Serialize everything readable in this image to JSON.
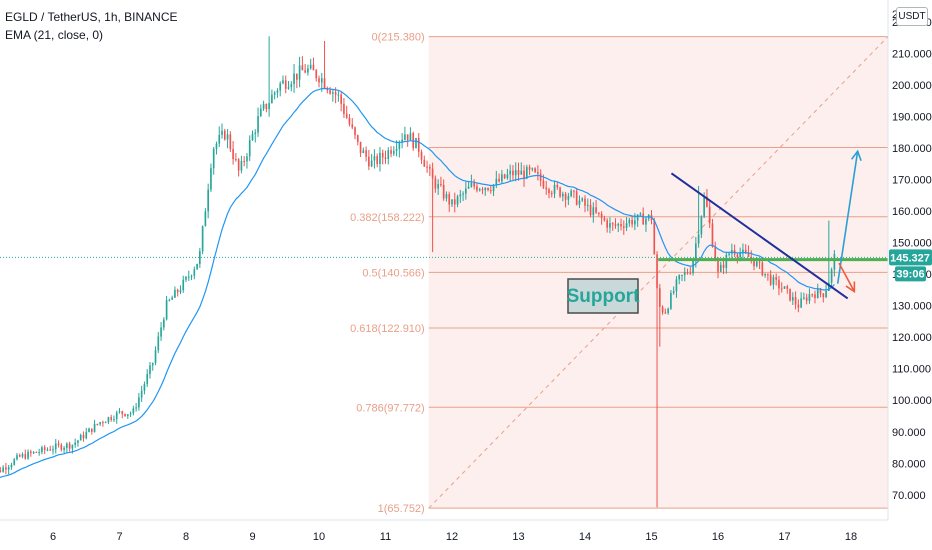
{
  "header": {
    "symbol_line": "EGLD / TetherUS, 1h, BINANCE",
    "indicator_line": "EMA (21, close, 0)"
  },
  "toolbar": {
    "currency": "USDT"
  },
  "price_labels": {
    "last_price": "145.327",
    "countdown": "39:06",
    "top_partial": "2"
  },
  "annotation": {
    "support_label": "Support"
  },
  "colors": {
    "up": "#26a69a",
    "down": "#ef5350",
    "ema": "#2196f3",
    "fib": "#e8a089",
    "fib_fill": "#fcecea",
    "trendline": "#1f2f9c",
    "support": "#4caf50",
    "arrow_up": "#2aa0d6",
    "arrow_down": "#f05a3c"
  },
  "chart_data": {
    "type": "candlestick",
    "symbol": "EGLD / TetherUS",
    "interval": "1h",
    "exchange": "BINANCE",
    "ylim": [
      62,
      227
    ],
    "y_ticks": [
      70,
      80,
      90,
      100,
      110,
      120,
      130,
      140,
      150,
      160,
      170,
      180,
      190,
      200,
      210,
      220
    ],
    "y_tick_labels": [
      "70.000",
      "80.000",
      "90.000",
      "100.000",
      "110.000",
      "120.000",
      "130.000",
      "140.000",
      "150.000",
      "160.000",
      "170.000",
      "180.000",
      "190.000",
      "200.000",
      "210.000",
      "220.000"
    ],
    "x_ticks": [
      6,
      7,
      8,
      9,
      10,
      11,
      12,
      13,
      14,
      15,
      16,
      17,
      18
    ],
    "x_tick_labels": [
      "6",
      "7",
      "8",
      "9",
      "10",
      "11",
      "12",
      "13",
      "14",
      "15",
      "16",
      "17",
      "18"
    ],
    "price_path": [
      [
        5.0,
        75
      ],
      [
        5.5,
        82
      ],
      [
        6.0,
        85
      ],
      [
        6.3,
        86
      ],
      [
        6.7,
        93
      ],
      [
        7.0,
        96
      ],
      [
        7.2,
        96
      ],
      [
        7.5,
        112
      ],
      [
        7.7,
        130
      ],
      [
        8.0,
        138
      ],
      [
        8.2,
        145
      ],
      [
        8.4,
        180
      ],
      [
        8.6,
        185
      ],
      [
        8.8,
        172
      ],
      [
        9.1,
        190
      ],
      [
        9.4,
        200
      ],
      [
        9.8,
        205
      ],
      [
        10.0,
        203
      ],
      [
        10.3,
        196
      ],
      [
        10.6,
        180
      ],
      [
        10.8,
        175
      ],
      [
        11.0,
        178
      ],
      [
        11.3,
        185
      ],
      [
        11.5,
        180
      ],
      [
        11.7,
        170
      ],
      [
        12.0,
        162
      ],
      [
        12.3,
        168
      ],
      [
        12.6,
        168
      ],
      [
        12.9,
        172
      ],
      [
        13.2,
        172
      ],
      [
        13.5,
        167
      ],
      [
        13.8,
        165
      ],
      [
        14.1,
        160
      ],
      [
        14.4,
        155
      ],
      [
        14.7,
        157
      ],
      [
        15.0,
        158
      ],
      [
        15.1,
        130
      ],
      [
        15.2,
        128
      ],
      [
        15.4,
        138
      ],
      [
        15.6,
        142
      ],
      [
        15.8,
        165
      ],
      [
        16.0,
        140
      ],
      [
        16.2,
        148
      ],
      [
        16.5,
        145
      ],
      [
        16.8,
        138
      ],
      [
        17.0,
        135
      ],
      [
        17.2,
        130
      ],
      [
        17.4,
        134
      ],
      [
        17.6,
        134
      ],
      [
        17.7,
        140
      ],
      [
        17.75,
        145.3
      ]
    ],
    "ema_period": 21,
    "fibonacci": {
      "levels": [
        {
          "ratio": "0",
          "price": 215.38,
          "label": "0(215.380)"
        },
        {
          "ratio": "0.382",
          "price": 158.222,
          "label": "0.382(158.222)"
        },
        {
          "ratio": "0.5",
          "price": 140.566,
          "label": "0.5(140.566)"
        },
        {
          "ratio": "0.618",
          "price": 122.91,
          "label": "0.618(122.910)"
        },
        {
          "ratio": "0.786",
          "price": 97.772,
          "label": "0.786(97.772)"
        },
        {
          "ratio": "1",
          "price": 65.752,
          "label": "1(65.752)"
        }
      ],
      "extra_line_price": 180.2,
      "x_start": 11.65,
      "x_end": 18.6
    },
    "last_price": 145.327,
    "support_price": 144.6,
    "trendline": [
      [
        15.3,
        172.0
      ],
      [
        17.95,
        132.3
      ]
    ],
    "arrow_up": [
      [
        17.8,
        137.0
      ],
      [
        18.1,
        179.0
      ]
    ],
    "arrow_down": [
      [
        17.82,
        143.5
      ],
      [
        18.05,
        134.5
      ]
    ]
  }
}
